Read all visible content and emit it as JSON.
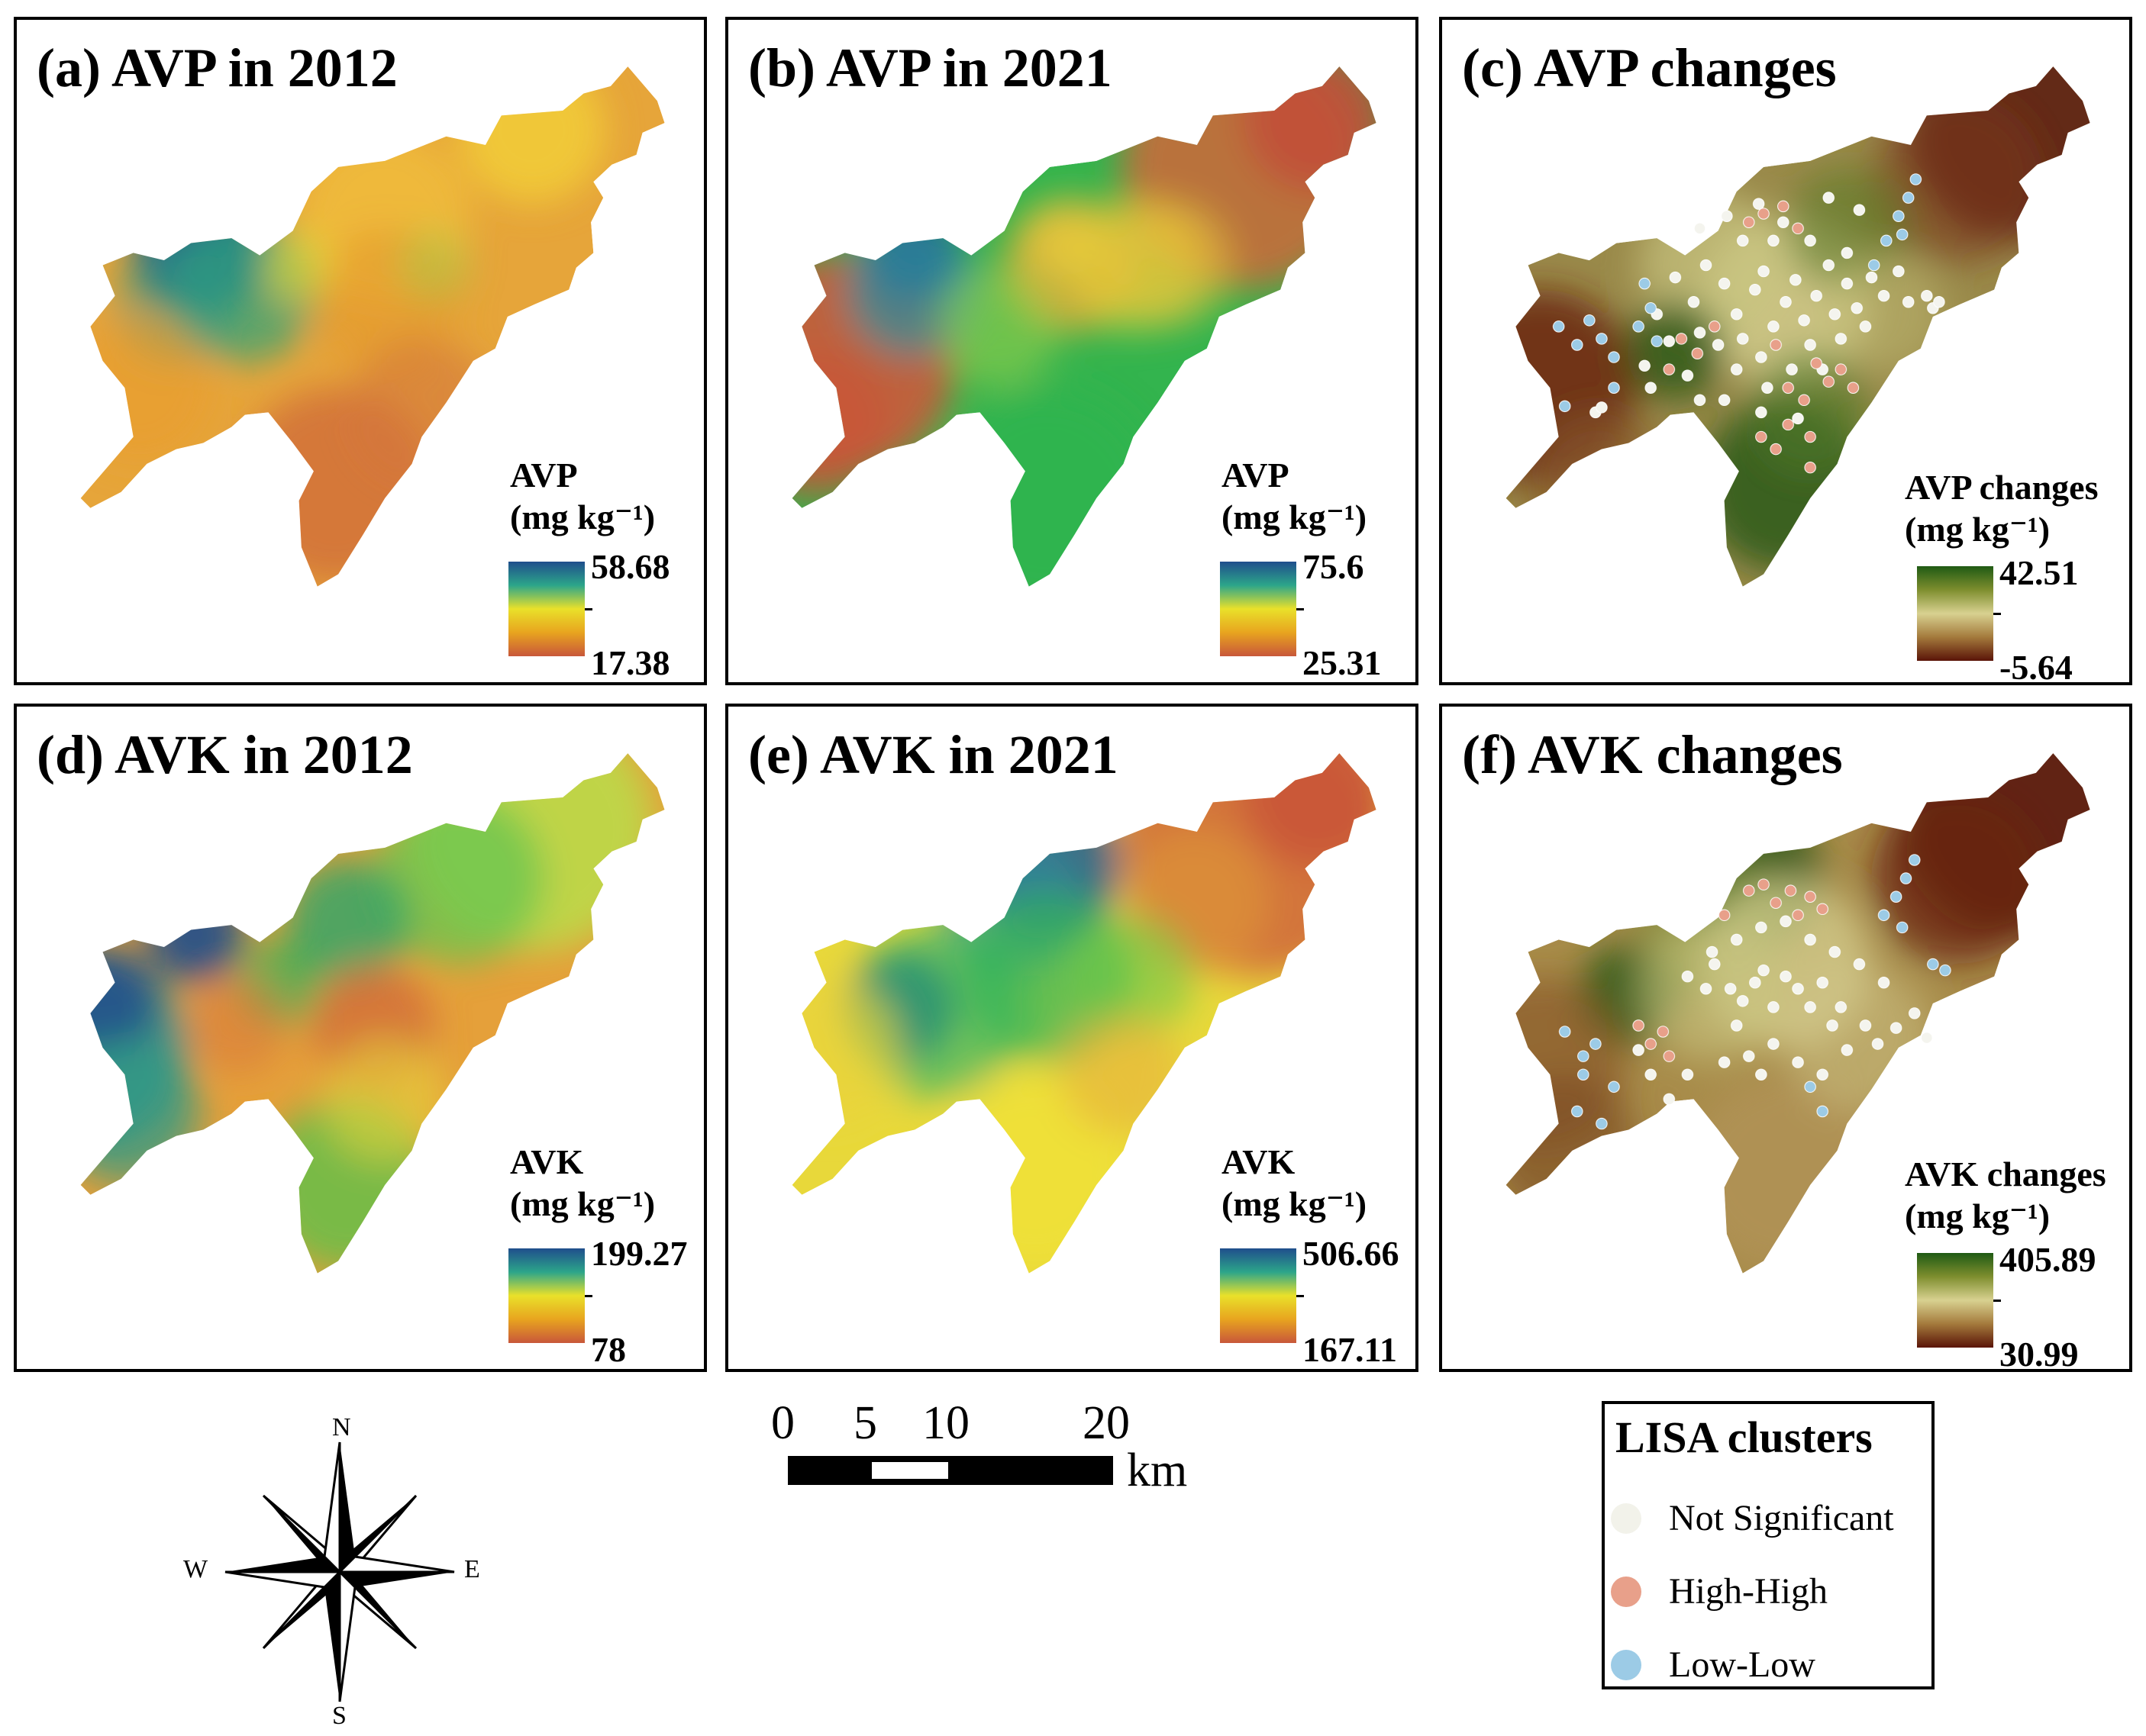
{
  "panels": [
    {
      "id": "a",
      "title": "(a) AVP in 2012",
      "legend_title": "AVP",
      "legend_unit": "(mg kg⁻¹)",
      "max": "58.68",
      "min": "17.38",
      "scheme": "avp2012",
      "colors": [
        "#1f4e8c",
        "#2ca58a",
        "#e9e12a",
        "#e8a41f",
        "#c8573a"
      ]
    },
    {
      "id": "b",
      "title": "(b) AVP in 2021",
      "legend_title": "AVP",
      "legend_unit": "(mg kg⁻¹)",
      "max": "75.6",
      "min": "25.31",
      "scheme": "avp2021",
      "colors": [
        "#1f4e8c",
        "#2ca58a",
        "#e9e12a",
        "#e8a41f",
        "#c8573a"
      ]
    },
    {
      "id": "c",
      "title": "(c) AVP changes",
      "legend_title": "AVP changes",
      "legend_unit": "(mg kg⁻¹)",
      "max": "42.51",
      "min": "-5.64",
      "scheme": "avpchg",
      "colors": [
        "#1f5a14",
        "#7e8e2e",
        "#d8d190",
        "#a47a3c",
        "#5a1408"
      ],
      "has_points": true
    },
    {
      "id": "d",
      "title": "(d) AVK in 2012",
      "legend_title": "AVK",
      "legend_unit": "(mg kg⁻¹)",
      "max": "199.27",
      "min": "78",
      "scheme": "avk2012",
      "colors": [
        "#1f4e8c",
        "#2ca58a",
        "#e9e12a",
        "#e8a41f",
        "#c8573a"
      ]
    },
    {
      "id": "e",
      "title": "(e) AVK in 2021",
      "legend_title": "AVK",
      "legend_unit": "(mg kg⁻¹)",
      "max": "506.66",
      "min": "167.11",
      "scheme": "avk2021",
      "colors": [
        "#1f4e8c",
        "#2ca58a",
        "#e9e12a",
        "#e8a41f",
        "#c8573a"
      ]
    },
    {
      "id": "f",
      "title": "(f) AVK changes",
      "legend_title": "AVK changes",
      "legend_unit": "(mg kg⁻¹)",
      "max": "405.89",
      "min": "30.99",
      "scheme": "avkchg",
      "colors": [
        "#1f5a14",
        "#7e8e2e",
        "#d8d190",
        "#a47a3c",
        "#5a1408"
      ],
      "has_points": true
    }
  ],
  "compass": {
    "n": "N",
    "s": "S",
    "e": "E",
    "w": "W"
  },
  "scale": {
    "ticks": [
      "0",
      "5",
      "10",
      "20"
    ],
    "unit": "km"
  },
  "lisa": {
    "title": "LISA clusters",
    "items": [
      {
        "label": "Not Significant",
        "color": "#f2f2ea"
      },
      {
        "label": "High-High",
        "color": "#e8a08a"
      },
      {
        "label": "Low-Low",
        "color": "#9ccbe6"
      }
    ]
  }
}
